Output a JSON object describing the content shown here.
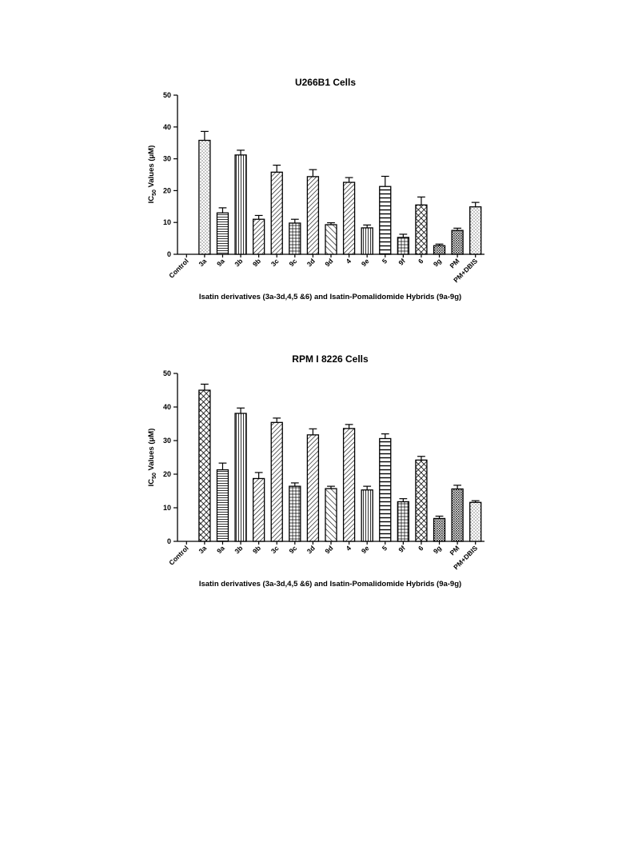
{
  "chart_data": [
    {
      "type": "bar",
      "title": "U266B1 Cells",
      "ylabel": {
        "prefix": "IC",
        "subscript": "50",
        "suffix": " Values (μM)"
      },
      "xlabel": "Isatin derivatives (3a-3d,4,5 &6) and Isatin-Pomalidomide Hybrids (9a-9g)",
      "ylim": [
        0,
        50
      ],
      "yticks": [
        0,
        10,
        20,
        30,
        40,
        50
      ],
      "categories": [
        "Control",
        "3a",
        "9a",
        "3b",
        "9b",
        "3c",
        "9c",
        "3d",
        "9d",
        "4",
        "9e",
        "5",
        "9f",
        "6",
        "9g",
        "PM",
        "PM+DBIS"
      ],
      "values": [
        0,
        35.8,
        13.0,
        31.2,
        11.0,
        25.8,
        9.8,
        24.4,
        9.3,
        22.6,
        8.3,
        21.3,
        5.3,
        15.5,
        2.7,
        7.5,
        14.9
      ],
      "errors": [
        0,
        2.8,
        1.6,
        1.5,
        1.2,
        2.2,
        1.2,
        2.2,
        0.6,
        1.5,
        0.9,
        3.2,
        1.0,
        2.5,
        0.5,
        0.7,
        1.4
      ],
      "patterns": [
        "none",
        "dots",
        "hlines",
        "vlines",
        "diagR",
        "diagR",
        "grid",
        "diagR",
        "diagL",
        "diagR",
        "vlines",
        "hlinesW",
        "grid",
        "cross",
        "dense",
        "dense",
        "dots"
      ],
      "grid": false,
      "legend": "none"
    },
    {
      "type": "bar",
      "title": "RPM I 8226 Cells",
      "ylabel": {
        "prefix": "IC",
        "subscript": "50",
        "suffix": " Values (μM)"
      },
      "xlabel": "Isatin derivatives (3a-3d,4,5 &6) and Isatin-Pomalidomide Hybrids (9a-9g)",
      "ylim": [
        0,
        50
      ],
      "yticks": [
        0,
        10,
        20,
        30,
        40,
        50
      ],
      "categories": [
        "Control",
        "3a",
        "9a",
        "3b",
        "9b",
        "3c",
        "9c",
        "3d",
        "9d",
        "4",
        "9e",
        "5",
        "9f",
        "6",
        "9g",
        "PM",
        "PM+DBIS"
      ],
      "values": [
        0,
        45.0,
        21.3,
        38.1,
        18.7,
        35.4,
        16.4,
        31.7,
        15.7,
        33.6,
        15.3,
        30.6,
        11.8,
        24.2,
        6.8,
        15.6,
        11.6
      ],
      "errors": [
        0,
        1.8,
        2.0,
        1.6,
        1.8,
        1.3,
        1.0,
        1.8,
        0.7,
        1.2,
        1.1,
        1.4,
        0.9,
        1.1,
        0.7,
        1.1,
        0.5
      ],
      "patterns": [
        "none",
        "cross",
        "hlines",
        "vlines",
        "diagR",
        "diagR",
        "grid",
        "diagR",
        "diagL",
        "diagR",
        "vlines",
        "hlinesW",
        "grid",
        "cross",
        "dense",
        "dense",
        "dots"
      ],
      "grid": false,
      "legend": "none"
    }
  ]
}
